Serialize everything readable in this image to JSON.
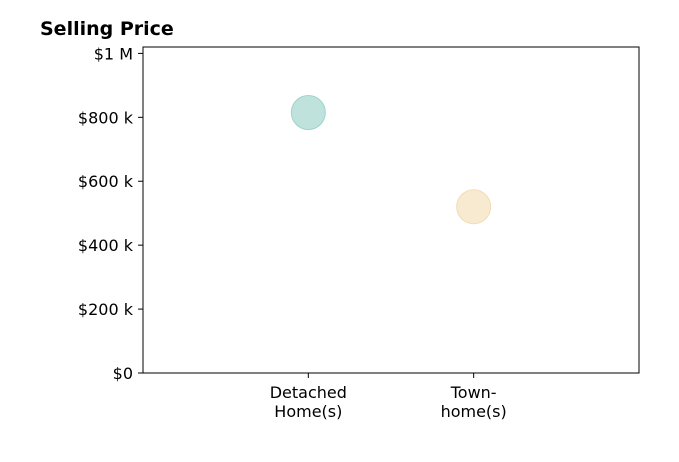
{
  "chart_data": {
    "type": "scatter",
    "title": "Selling Price",
    "xlabel": "",
    "ylabel": "",
    "categories": [
      {
        "lines": [
          "Detached",
          "Home(s)"
        ]
      },
      {
        "lines": [
          "Town-",
          "home(s)"
        ]
      }
    ],
    "points": [
      {
        "category_index": 0,
        "value": 815000,
        "color": "#bfe2dd",
        "edge": "#9fd3cb"
      },
      {
        "category_index": 1,
        "value": 520000,
        "color": "#f8ead0",
        "edge": "#f3dcb5"
      }
    ],
    "ylim": [
      0,
      1020000
    ],
    "xlim": [
      -1,
      2
    ],
    "yticks": [
      {
        "value": 0,
        "label": "$0"
      },
      {
        "value": 200000,
        "label": "$200 k"
      },
      {
        "value": 400000,
        "label": "$400 k"
      },
      {
        "value": 600000,
        "label": "$600 k"
      },
      {
        "value": 800000,
        "label": "$800 k"
      },
      {
        "value": 1000000,
        "label": "$1 M"
      }
    ],
    "grid": false,
    "legend": "none"
  }
}
